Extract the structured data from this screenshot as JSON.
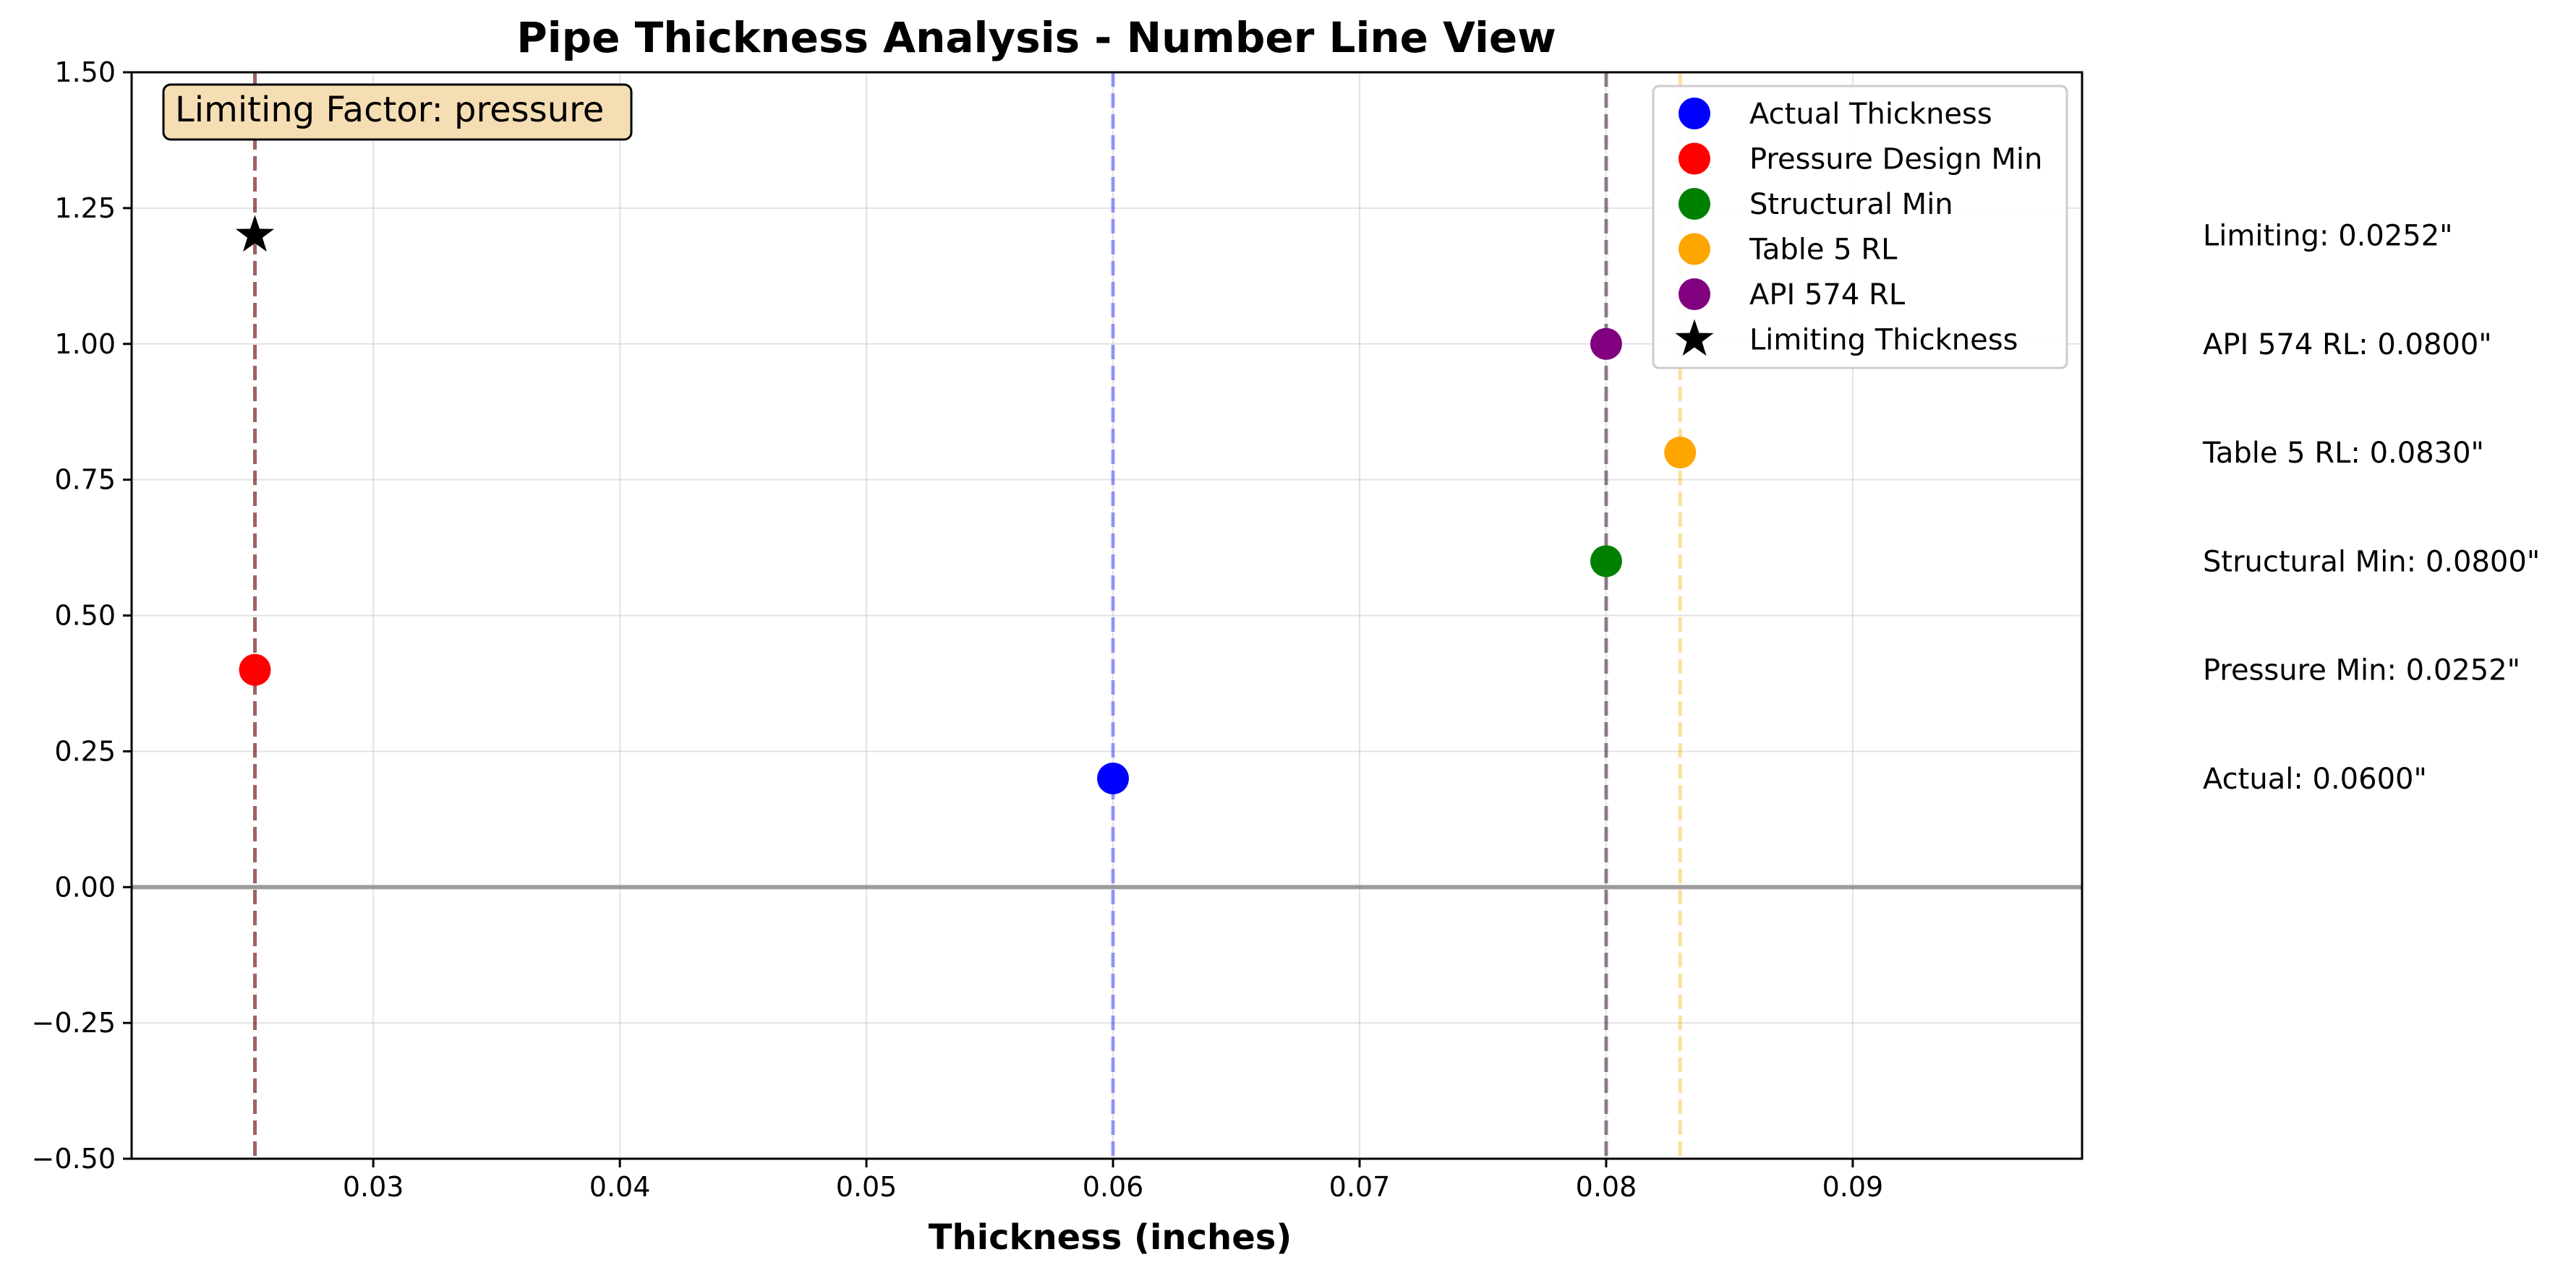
{
  "chart_data": {
    "type": "scatter",
    "title": "Pipe Thickness Analysis - Number Line View",
    "xlabel": "Thickness (inches)",
    "ylabel": "",
    "xlim": [
      0.0202,
      0.0993
    ],
    "ylim": [
      -0.5,
      1.5
    ],
    "x_ticks": [
      0.03,
      0.04,
      0.05,
      0.06,
      0.07,
      0.08,
      0.09
    ],
    "x_tick_labels": [
      "0.03",
      "0.04",
      "0.05",
      "0.06",
      "0.07",
      "0.08",
      "0.09"
    ],
    "y_ticks": [
      -0.5,
      -0.25,
      0.0,
      0.25,
      0.5,
      0.75,
      1.0,
      1.25,
      1.5
    ],
    "y_tick_labels": [
      "−0.50",
      "−0.25",
      "0.00",
      "0.25",
      "0.50",
      "0.75",
      "1.00",
      "1.25",
      "1.50"
    ],
    "grid": true,
    "legend_position": "top-right",
    "series": [
      {
        "name": "Actual Thickness",
        "marker": "circle",
        "color": "#0000ff",
        "x": 0.06,
        "y": 0.2,
        "vline_color": "#0000ff"
      },
      {
        "name": "Pressure Design Min",
        "marker": "circle",
        "color": "#ff0000",
        "x": 0.0252,
        "y": 0.4,
        "vline_color": "#ff0000"
      },
      {
        "name": "Structural Min",
        "marker": "circle",
        "color": "#008000",
        "x": 0.08,
        "y": 0.6,
        "vline_color": "#008000"
      },
      {
        "name": "Table 5 RL",
        "marker": "circle",
        "color": "#ffa500",
        "x": 0.083,
        "y": 0.8,
        "vline_color": "#ffa500"
      },
      {
        "name": "API 574 RL",
        "marker": "circle",
        "color": "#800080",
        "x": 0.08,
        "y": 1.0,
        "vline_color": "#800080"
      },
      {
        "name": "Limiting Thickness",
        "marker": "star",
        "color": "#000000",
        "x": 0.0252,
        "y": 1.2,
        "vline_color": "#000000"
      }
    ],
    "annotation_box": "Limiting Factor: pressure",
    "side_labels": [
      {
        "text": "Limiting: 0.0252\"",
        "y": 1.2
      },
      {
        "text": "API 574 RL: 0.0800\"",
        "y": 1.0
      },
      {
        "text": "Table 5 RL: 0.0830\"",
        "y": 0.8
      },
      {
        "text": "Structural Min: 0.0800\"",
        "y": 0.6
      },
      {
        "text": "Pressure Min: 0.0252\"",
        "y": 0.4
      },
      {
        "text": "Actual: 0.0600\"",
        "y": 0.2
      }
    ]
  }
}
